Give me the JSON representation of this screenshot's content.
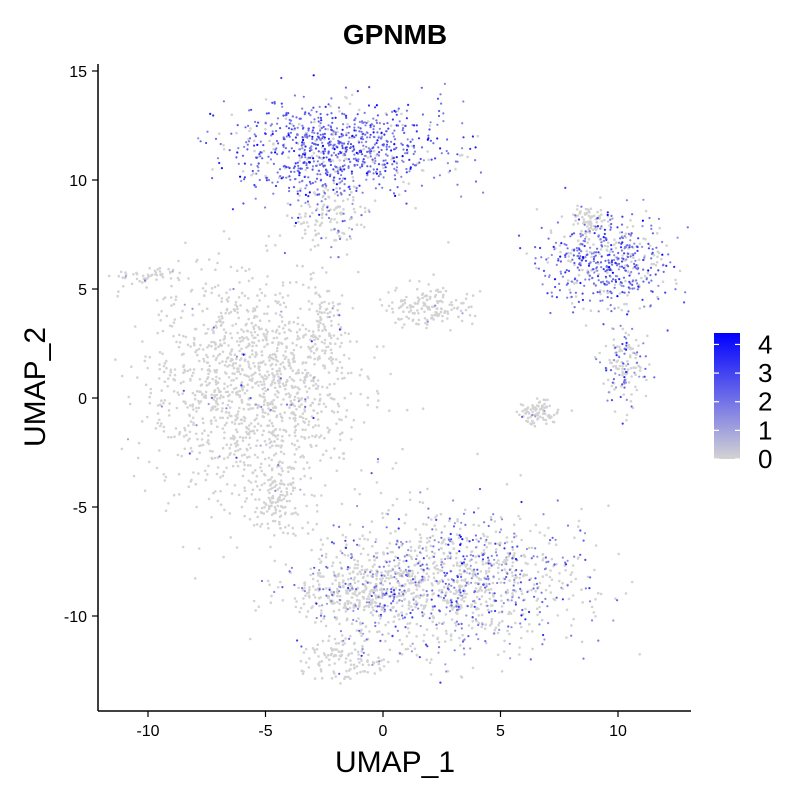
{
  "chart_data": {
    "type": "scatter",
    "title": "GPNMB",
    "xlabel": "UMAP_1",
    "ylabel": "UMAP_2",
    "xlim": [
      -12,
      13
    ],
    "ylim": [
      -14,
      15
    ],
    "x_ticks": [
      -10,
      -5,
      0,
      5,
      10
    ],
    "y_ticks": [
      -10,
      -5,
      0,
      5,
      10,
      15
    ],
    "x_tick_labels": [
      "-10",
      "-5",
      "0",
      "5",
      "10"
    ],
    "y_tick_labels": [
      "-10",
      "-5",
      "0",
      "5",
      "10",
      "15"
    ],
    "grid": false,
    "legend": {
      "position": "right",
      "type": "color-gradient",
      "low_color": "#d3d3d3",
      "high_color": "#0000ff",
      "range": [
        0,
        4.4
      ],
      "ticks": [
        0,
        1,
        2,
        3,
        4
      ],
      "tick_labels": [
        "0",
        "1",
        "2",
        "3",
        "4"
      ]
    },
    "point_color_zero": "#d3d3d3",
    "point_color_max": "#0000ff",
    "clusters": [
      {
        "name": "large-left-cluster",
        "cx": -5.5,
        "cy": 0.5,
        "sx": 2.2,
        "sy": 2.6,
        "n": 1400,
        "mean_expr": 0.03
      },
      {
        "name": "left-lower-tail",
        "cx": -4.5,
        "cy": -4.5,
        "sx": 0.6,
        "sy": 0.9,
        "n": 120,
        "mean_expr": 0.02
      },
      {
        "name": "left-small-strand",
        "cx": -10.0,
        "cy": 5.6,
        "sx": 0.7,
        "sy": 0.2,
        "n": 50,
        "mean_expr": 0.02
      },
      {
        "name": "top-cluster",
        "cx": -2.0,
        "cy": 11.5,
        "sx": 2.3,
        "sy": 1.0,
        "n": 900,
        "mean_expr": 1.2
      },
      {
        "name": "top-cluster-stem",
        "cx": -2.3,
        "cy": 8.5,
        "sx": 0.8,
        "sy": 0.9,
        "n": 160,
        "mean_expr": 0.4
      },
      {
        "name": "mid-small-cluster",
        "cx": 1.9,
        "cy": 4.2,
        "sx": 0.9,
        "sy": 0.5,
        "n": 160,
        "mean_expr": 0.02
      },
      {
        "name": "mid-left-strand",
        "cx": -2.5,
        "cy": 3.5,
        "sx": 0.3,
        "sy": 0.9,
        "n": 50,
        "mean_expr": 0.02
      },
      {
        "name": "bottom-cluster",
        "cx": 3.0,
        "cy": -8.3,
        "sx": 2.8,
        "sy": 1.6,
        "n": 1200,
        "mean_expr": 0.55
      },
      {
        "name": "bottom-left-extension",
        "cx": -1.0,
        "cy": -9.0,
        "sx": 1.6,
        "sy": 0.8,
        "n": 350,
        "mean_expr": 0.2
      },
      {
        "name": "bottom-tail",
        "cx": -1.5,
        "cy": -12.0,
        "sx": 0.9,
        "sy": 0.5,
        "n": 120,
        "mean_expr": 0.03
      },
      {
        "name": "right-upper-cluster",
        "cx": 9.5,
        "cy": 6.3,
        "sx": 1.4,
        "sy": 1.1,
        "n": 550,
        "mean_expr": 1.0
      },
      {
        "name": "right-mid-cluster",
        "cx": 10.3,
        "cy": 1.5,
        "sx": 0.5,
        "sy": 0.9,
        "n": 150,
        "mean_expr": 0.5
      },
      {
        "name": "right-small-cluster",
        "cx": 6.6,
        "cy": -0.6,
        "sx": 0.4,
        "sy": 0.3,
        "n": 90,
        "mean_expr": 0.05
      },
      {
        "name": "right-tip",
        "cx": 8.8,
        "cy": 8.2,
        "sx": 0.4,
        "sy": 0.4,
        "n": 60,
        "mean_expr": 0.05
      }
    ]
  }
}
